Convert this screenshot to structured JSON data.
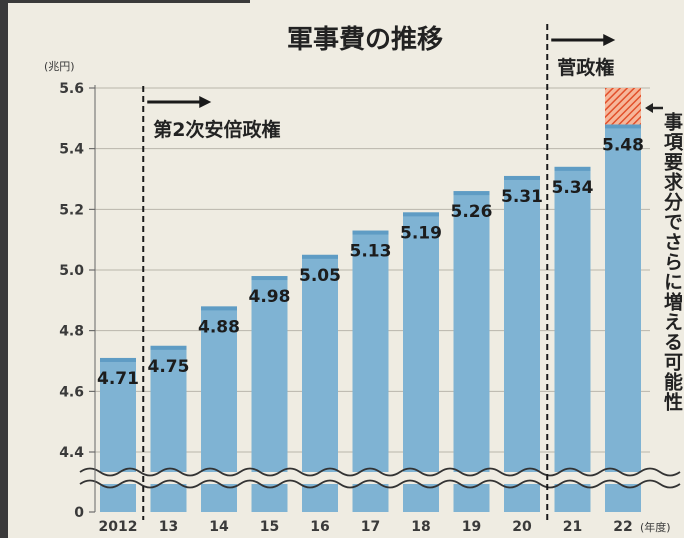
{
  "chart_data": {
    "type": "bar",
    "title": "軍事費の推移",
    "unit_label": "(兆円)",
    "x_unit_label": "(年度)",
    "categories": [
      "2012",
      "13",
      "14",
      "15",
      "16",
      "17",
      "18",
      "19",
      "20",
      "21",
      "22"
    ],
    "values": [
      4.71,
      4.75,
      4.88,
      4.98,
      5.05,
      5.13,
      5.19,
      5.26,
      5.31,
      5.34,
      5.48
    ],
    "value_labels": [
      "4.71",
      "4.75",
      "4.88",
      "4.98",
      "5.05",
      "5.13",
      "5.19",
      "5.26",
      "5.31",
      "5.34",
      "5.48"
    ],
    "y_ticks": [
      "0",
      "4.4",
      "4.6",
      "4.8",
      "5.0",
      "5.2",
      "5.4",
      "5.6"
    ],
    "ylim": [
      4.3,
      5.6
    ],
    "axis_break": true,
    "additional_request": {
      "category": "22",
      "from": 5.48,
      "to": 5.6,
      "color": "#e8613a"
    },
    "annotations": [
      {
        "text": "第2次安倍政権",
        "start_category": "13"
      },
      {
        "text": "菅政権",
        "start_category": "21"
      }
    ],
    "side_note": "事項要求分でさらに増える可能性",
    "bar_color": "#7fb3d3",
    "background": "#efece2"
  }
}
